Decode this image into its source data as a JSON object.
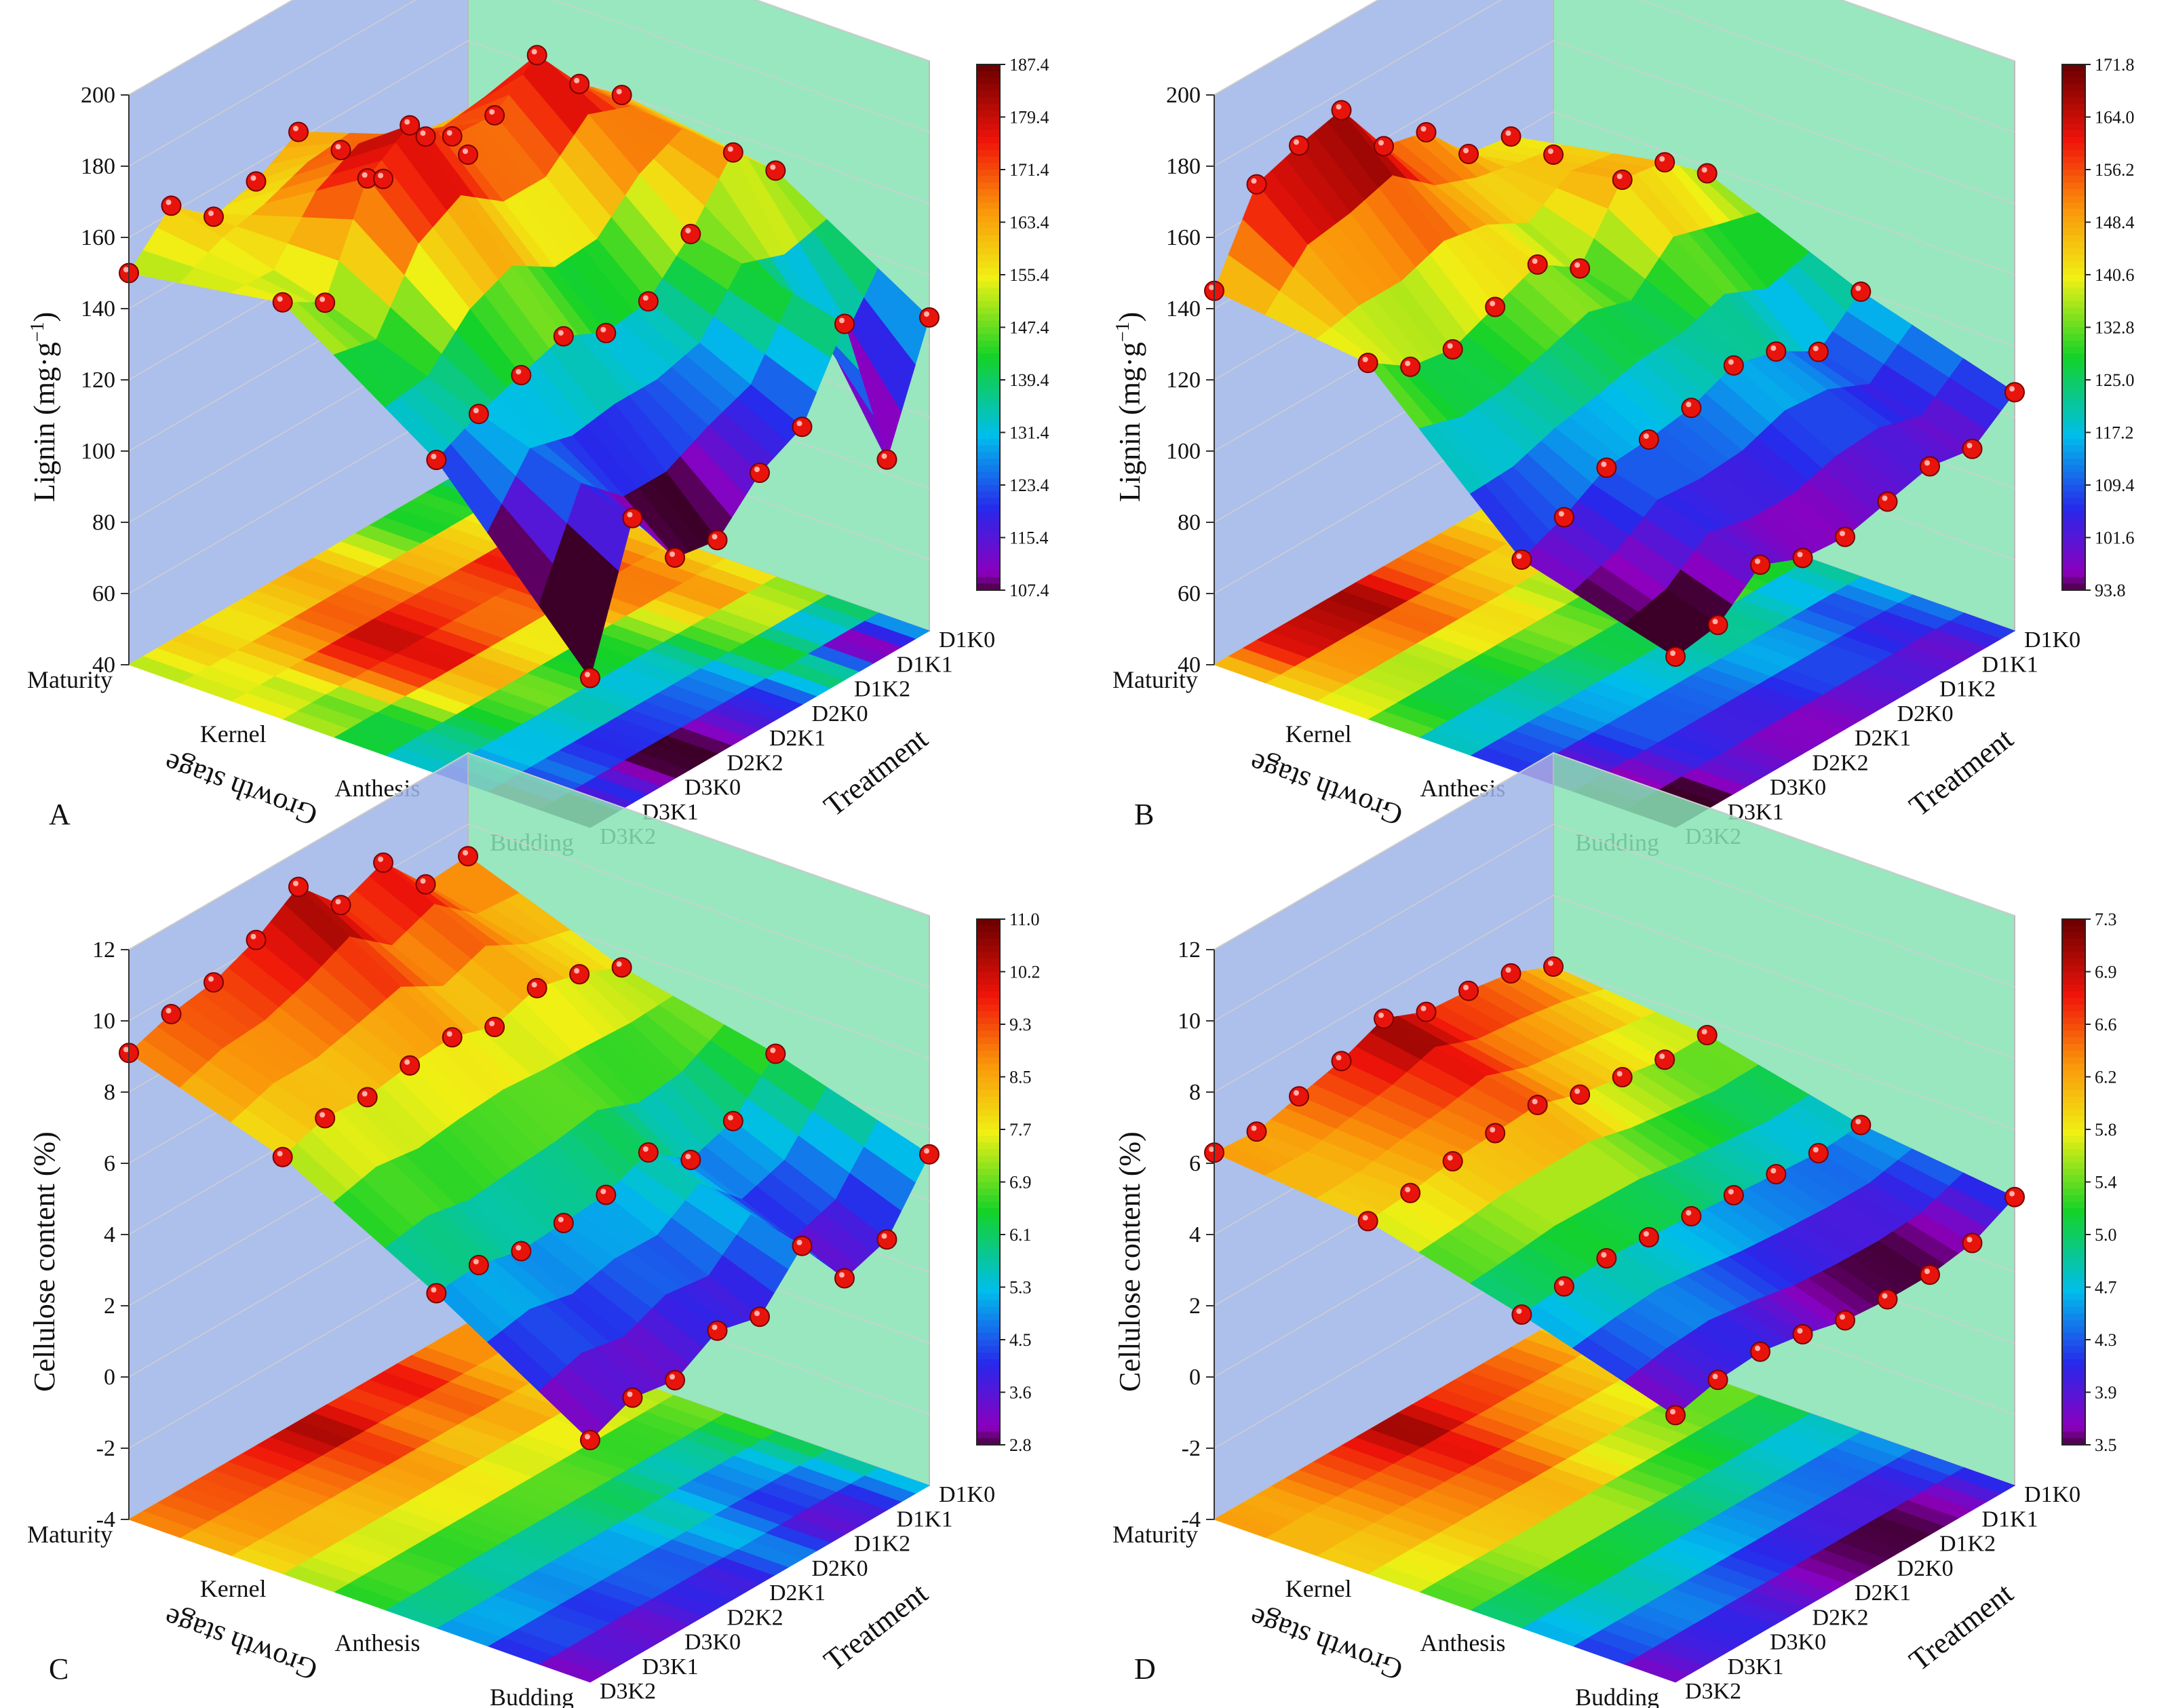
{
  "figure": {
    "panels": [
      {
        "letter": "A",
        "zlabel": "Lignin (mg·g⁻¹)",
        "zlabel_main": "Lignin (mg·g",
        "zlabel_sup": "−1",
        "zlabel_end": ")"
      },
      {
        "letter": "B",
        "zlabel": "Lignin (mg·g⁻¹)",
        "zlabel_main": "Lignin (mg·g",
        "zlabel_sup": "−1",
        "zlabel_end": ")"
      },
      {
        "letter": "C",
        "zlabel": "Cellulose content (%)",
        "zlabel_main": "Cellulose content (%)",
        "zlabel_sup": "",
        "zlabel_end": ""
      },
      {
        "letter": "D",
        "zlabel": "Cellulose content (%)",
        "zlabel_main": "Cellulose content (%)",
        "zlabel_sup": "",
        "zlabel_end": ""
      }
    ],
    "growth_axis_title": "Growth stage",
    "treatment_axis_title": "Treatment"
  },
  "colors": {
    "back_wall_left": "#9fb4e8",
    "back_wall_right": "#86e3b4",
    "point": "#e8140c",
    "grid": "#cfcfcf"
  },
  "chart_data": [
    {
      "type": "surface3d",
      "panel": "A",
      "zlabel": "Lignin (mg·g⁻¹)",
      "xlabel": "Growth stage",
      "ylabel": "Treatment",
      "growth_stages": [
        "Budding",
        "Anthesis",
        "Kernel",
        "Maturity"
      ],
      "treatments": [
        "D1K0",
        "D1K1",
        "D1K2",
        "D2K0",
        "D2K1",
        "D2K2",
        "D3K0",
        "D3K1",
        "D3K2"
      ],
      "zlim": [
        40,
        200
      ],
      "zticks": [
        40,
        60,
        80,
        100,
        120,
        140,
        160,
        180,
        200
      ],
      "colorbar_range": [
        107.4,
        187.4
      ],
      "colorbar_ticks": [
        "107.4",
        "115.4",
        "123.4",
        "131.4",
        "139.4",
        "147.4",
        "155.4",
        "163.4",
        "171.4",
        "179.4",
        "187.4"
      ],
      "values": [
        [
          128,
          95,
          140,
          118,
          112,
          100,
          102,
          120,
          82
        ],
        [
          154,
          166,
          150,
          138,
          136,
          142,
          138,
          134,
          128
        ],
        [
          160,
          170,
          185,
          175,
          176,
          186,
          178,
          150,
          157
        ],
        [
          128,
          140,
          135,
          150,
          162,
          155,
          152,
          162,
          150
        ]
      ]
    },
    {
      "type": "surface3d",
      "panel": "B",
      "zlabel": "Lignin (mg·g⁻¹)",
      "xlabel": "Growth stage",
      "ylabel": "Treatment",
      "growth_stages": [
        "Budding",
        "Anthesis",
        "Kernel",
        "Maturity"
      ],
      "treatments": [
        "D1K0",
        "D1K1",
        "D1K2",
        "D2K0",
        "D2K1",
        "D2K2",
        "D3K0",
        "D3K1",
        "D3K2"
      ],
      "zlim": [
        40,
        200
      ],
      "zticks": [
        40,
        60,
        80,
        100,
        120,
        140,
        160,
        180,
        200
      ],
      "colorbar_range": [
        93.8,
        171.8
      ],
      "colorbar_ticks": [
        "93.8",
        "101.6",
        "109.4",
        "117.2",
        "125.0",
        "132.8",
        "140.6",
        "148.4",
        "156.2",
        "164.0",
        "171.8"
      ],
      "values": [
        [
          107,
          98,
          100,
          97,
          94,
          95,
          100,
          90,
          88
        ],
        [
          120,
          110,
          117,
          120,
          115,
          113,
          112,
          105,
          100
        ],
        [
          138,
          148,
          150,
          132,
          140,
          135,
          130,
          132,
          140
        ],
        [
          128,
          140,
          142,
          155,
          158,
          175,
          172,
          168,
          145
        ]
      ]
    },
    {
      "type": "surface3d",
      "panel": "C",
      "zlabel": "Cellulose content (%)",
      "xlabel": "Growth stage",
      "ylabel": "Treatment",
      "growth_stages": [
        "Budding",
        "Anthesis",
        "Kernel",
        "Maturity"
      ],
      "treatments": [
        "D1K0",
        "D1K1",
        "D1K2",
        "D2K0",
        "D2K1",
        "D2K2",
        "D3K0",
        "D3K1",
        "D3K2"
      ],
      "zlim": [
        -4,
        12
      ],
      "zticks": [
        -4,
        -2,
        0,
        2,
        4,
        6,
        8,
        10,
        12
      ],
      "colorbar_range": [
        2.8,
        11.0
      ],
      "colorbar_ticks": [
        "2.8",
        "3.6",
        "4.5",
        "5.3",
        "6.1",
        "6.9",
        "7.7",
        "8.5",
        "9.3",
        "10.2",
        "11.0"
      ],
      "values": [
        [
          5.3,
          3.6,
          3.2,
          4.8,
          3.5,
          3.8,
          3.1,
          3.3,
          2.8
        ],
        [
          6.6,
          5.4,
          5.0,
          5.9,
          5.4,
          5.3,
          5.2,
          5.5,
          5.4
        ],
        [
          7.5,
          8.0,
          8.3,
          7.9,
          8.3,
          8.2,
          8.0,
          8.1,
          7.7
        ],
        [
          9.1,
          9.0,
          10.3,
          9.8,
          11.0,
          10.2,
          9.7,
          9.5,
          9.1
        ]
      ]
    },
    {
      "type": "surface3d",
      "panel": "D",
      "zlabel": "Cellulose content (%)",
      "xlabel": "Growth stage",
      "ylabel": "Treatment",
      "growth_stages": [
        "Budding",
        "Anthesis",
        "Kernel",
        "Maturity"
      ],
      "treatments": [
        "D1K0",
        "D1K1",
        "D1K2",
        "D2K0",
        "D2K1",
        "D2K2",
        "D3K0",
        "D3K1",
        "D3K2"
      ],
      "zlim": [
        -4,
        12
      ],
      "zticks": [
        -4,
        -2,
        0,
        2,
        4,
        6,
        8,
        10,
        12
      ],
      "colorbar_range": [
        3.5,
        7.3
      ],
      "colorbar_ticks": [
        "3.5",
        "3.9",
        "4.3",
        "4.7",
        "5.0",
        "5.4",
        "5.8",
        "6.2",
        "6.6",
        "6.9",
        "7.3"
      ],
      "values": [
        [
          4.1,
          3.5,
          3.3,
          3.3,
          3.4,
          3.7,
          3.9,
          3.8,
          3.5
        ],
        [
          4.6,
          4.5,
          4.6,
          4.7,
          4.8,
          4.9,
          5.0,
          4.9,
          4.8
        ],
        [
          5.6,
          5.6,
          5.8,
          6.0,
          6.4,
          6.3,
          6.2,
          6.0,
          5.9
        ],
        [
          6.0,
          6.5,
          6.7,
          6.8,
          7.3,
          6.8,
          6.5,
          6.2,
          6.3
        ]
      ]
    }
  ]
}
